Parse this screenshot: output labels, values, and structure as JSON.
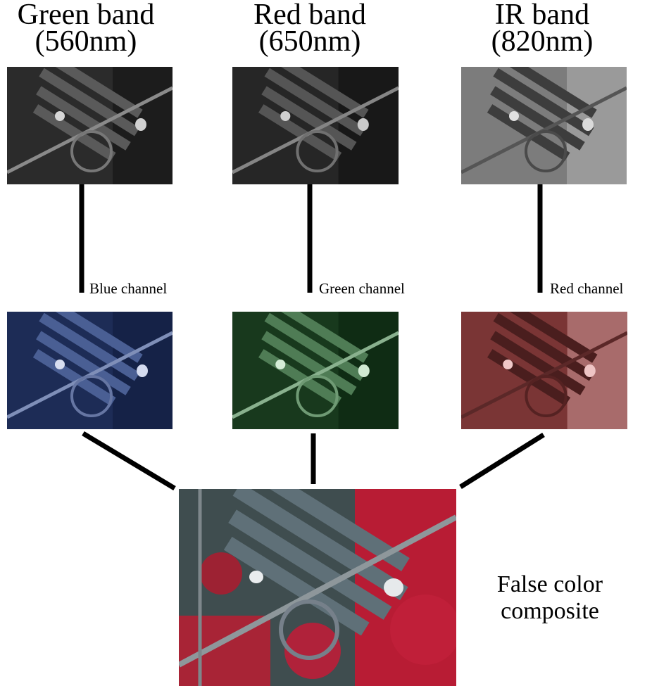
{
  "bands": [
    {
      "title_line1": "Green band",
      "title_line2": "(560nm)",
      "channel": "Blue channel",
      "tint": "#2f4a86"
    },
    {
      "title_line1": "Red band",
      "title_line2": "(650nm)",
      "channel": "Green channel",
      "tint": "#2f7a3c"
    },
    {
      "title_line1": "IR band",
      "title_line2": "(820nm)",
      "channel": "Red channel",
      "tint": "#9b3f3f"
    }
  ],
  "composite": {
    "line1": "False color",
    "line2": "composite"
  },
  "colors": {
    "line": "#000000",
    "vegetation_ir": "#c4203a",
    "roof": "#5d6f78",
    "road": "#8a8f93"
  }
}
